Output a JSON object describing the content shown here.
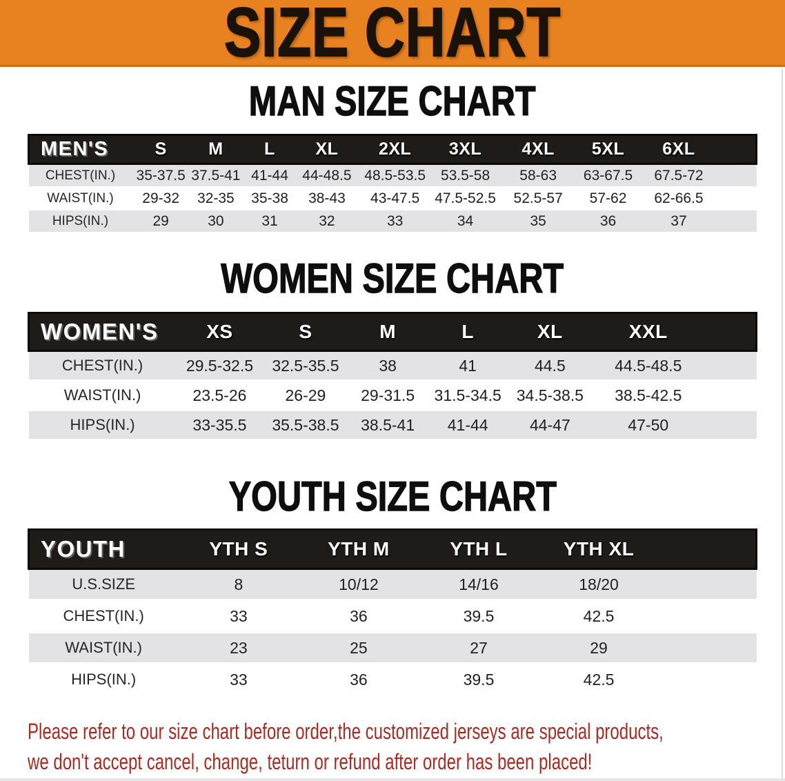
{
  "banner": {
    "title": "SIZE CHART"
  },
  "colors": {
    "banner_bg": "#e8811f",
    "banner_text": "#1a1208",
    "table_header_bg": "#1e1b19",
    "table_header_text": "#ffffff",
    "row_shaded_bg": "#e3e3e5",
    "row_plain_bg": "#ffffff",
    "title_text": "#0e0e0e",
    "disclaimer_text": "#a92b21"
  },
  "chart_data": [
    {
      "type": "table",
      "title": "MAN SIZE CHART",
      "corner_label": "MEN'S",
      "columns": [
        "S",
        "M",
        "L",
        "XL",
        "2XL",
        "3XL",
        "4XL",
        "5XL",
        "6XL"
      ],
      "rows": [
        {
          "label": "CHEST(IN.)",
          "values": [
            "35-37.5",
            "37.5-41",
            "41-44",
            "44-48.5",
            "48.5-53.5",
            "53.5-58",
            "58-63",
            "63-67.5",
            "67.5-72"
          ]
        },
        {
          "label": "WAIST(IN.)",
          "values": [
            "29-32",
            "32-35",
            "35-38",
            "38-43",
            "43-47.5",
            "47.5-52.5",
            "52.5-57",
            "57-62",
            "62-66.5"
          ]
        },
        {
          "label": "HIPS(IN.)",
          "values": [
            "29",
            "30",
            "31",
            "32",
            "33",
            "34",
            "35",
            "36",
            "37"
          ]
        }
      ]
    },
    {
      "type": "table",
      "title": "WOMEN SIZE CHART",
      "corner_label": "WOMEN'S",
      "columns": [
        "XS",
        "S",
        "M",
        "L",
        "XL",
        "XXL"
      ],
      "rows": [
        {
          "label": "CHEST(IN.)",
          "values": [
            "29.5-32.5",
            "32.5-35.5",
            "38",
            "41",
            "44.5",
            "44.5-48.5"
          ]
        },
        {
          "label": "WAIST(IN.)",
          "values": [
            "23.5-26",
            "26-29",
            "29-31.5",
            "31.5-34.5",
            "34.5-38.5",
            "38.5-42.5"
          ]
        },
        {
          "label": "HIPS(IN.)",
          "values": [
            "33-35.5",
            "35.5-38.5",
            "38.5-41",
            "41-44",
            "44-47",
            "47-50"
          ]
        }
      ]
    },
    {
      "type": "table",
      "title": "YOUTH SIZE CHART",
      "corner_label": "YOUTH",
      "columns": [
        "YTH S",
        "YTH M",
        "YTH L",
        "YTH XL"
      ],
      "rows": [
        {
          "label": "U.S.SIZE",
          "values": [
            "8",
            "10/12",
            "14/16",
            "18/20"
          ]
        },
        {
          "label": "CHEST(IN.)",
          "values": [
            "33",
            "36",
            "39.5",
            "42.5"
          ]
        },
        {
          "label": "WAIST(IN.)",
          "values": [
            "23",
            "25",
            "27",
            "29"
          ]
        },
        {
          "label": "HIPS(IN.)",
          "values": [
            "33",
            "36",
            "39.5",
            "42.5"
          ]
        }
      ]
    }
  ],
  "disclaimer": {
    "line1": "Please refer to our size chart before order,the customized jerseys are special products,",
    "line2": "we don't accept cancel, change, teturn or refund after order has been placed!"
  }
}
